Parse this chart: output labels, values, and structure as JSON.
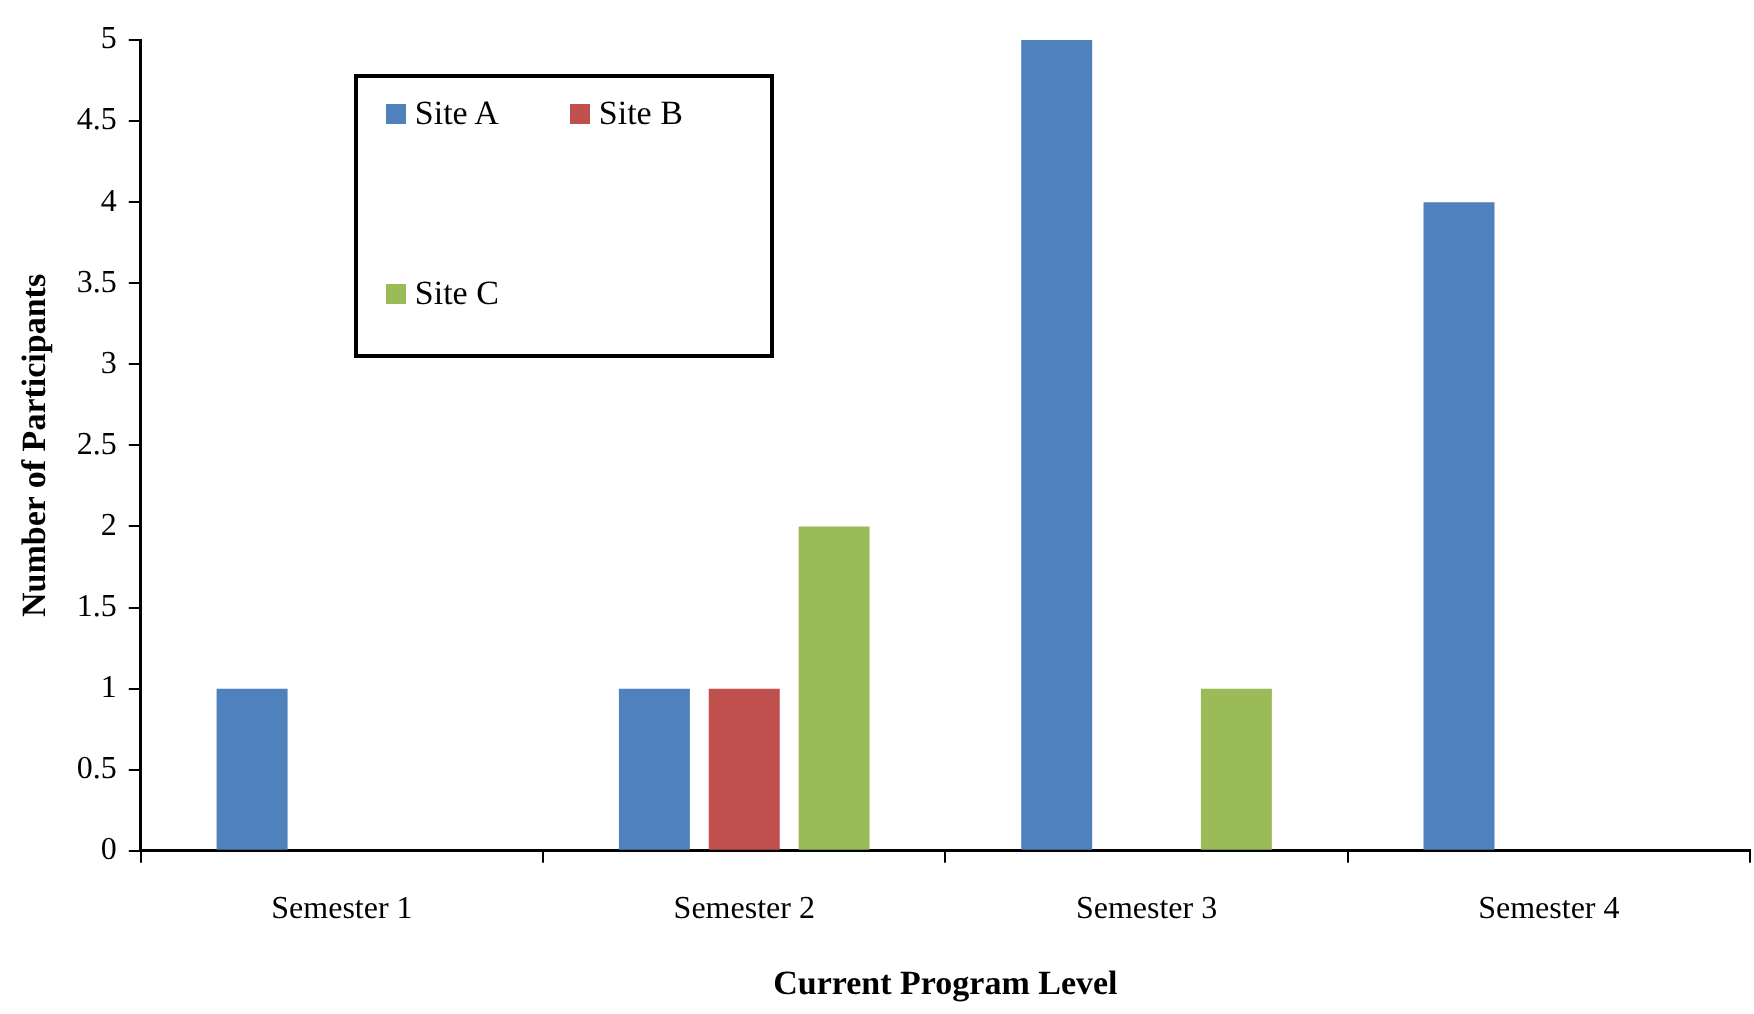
{
  "chart_data": {
    "type": "bar",
    "xlabel": "Current Program Level",
    "ylabel": "Number of Participants",
    "categories": [
      "Semester 1",
      "Semester 2",
      "Semester 3",
      "Semester 4"
    ],
    "series": [
      {
        "name": "Site A",
        "color": "#4f81bd",
        "values": [
          1,
          1,
          5,
          4
        ]
      },
      {
        "name": "Site B",
        "color": "#c0504d",
        "values": [
          0,
          1,
          0,
          0
        ]
      },
      {
        "name": "Site C",
        "color": "#9bbb59",
        "values": [
          0,
          2,
          1,
          0
        ]
      }
    ],
    "ylim": [
      0,
      5
    ],
    "yticks": [
      0,
      0.5,
      1,
      1.5,
      2,
      2.5,
      3,
      3.5,
      4,
      4.5,
      5
    ],
    "grid": false,
    "legend": "top left"
  }
}
